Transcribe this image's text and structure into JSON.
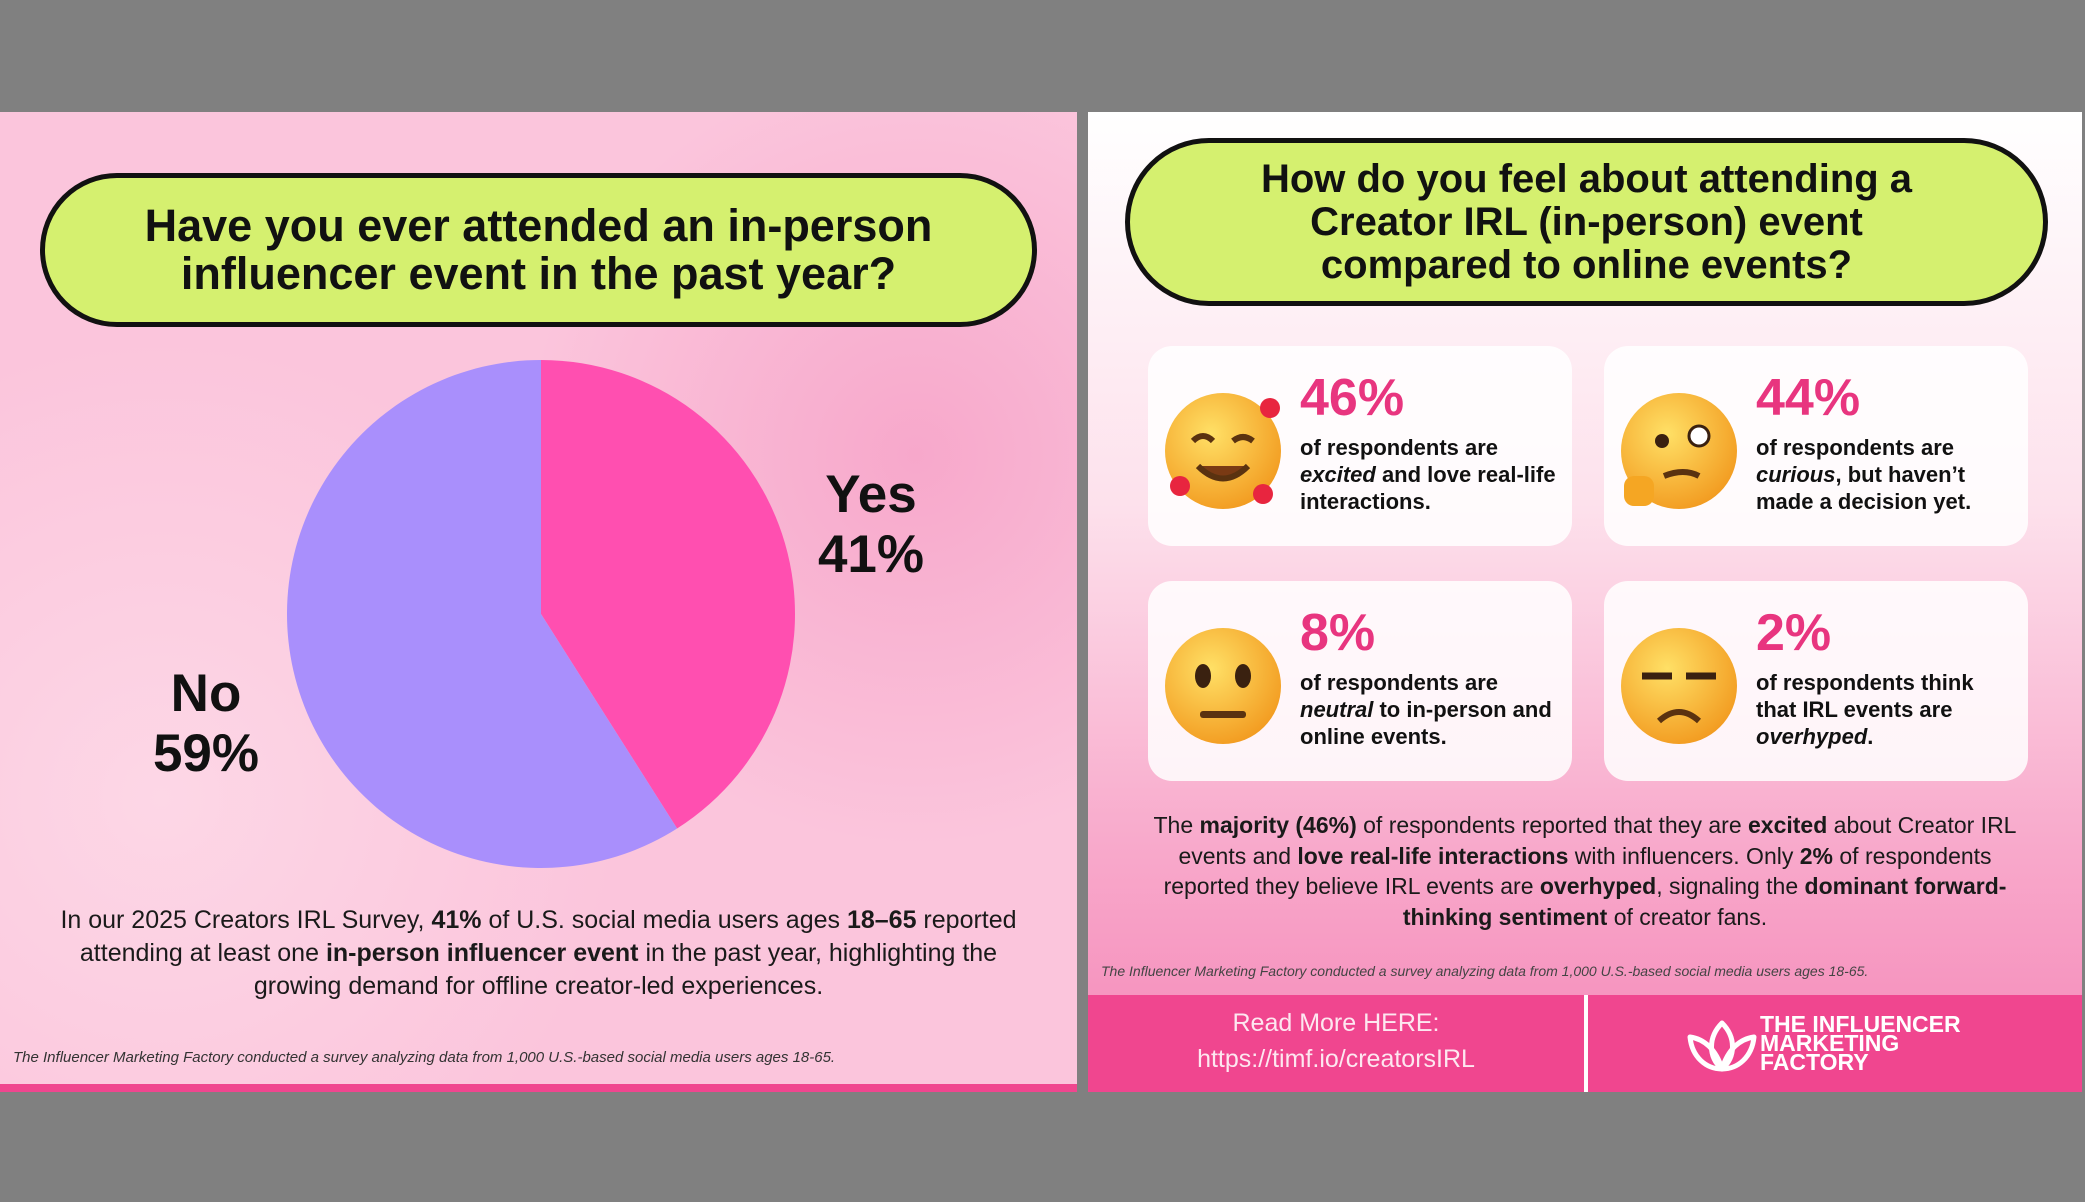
{
  "chart_data": {
    "type": "pie",
    "title": "Have you ever attended an in-person influencer event in the past year?",
    "categories": [
      "Yes",
      "No"
    ],
    "values": [
      41,
      59
    ],
    "value_labels": [
      "41%",
      "59%"
    ],
    "colors": [
      "#ff4fb0",
      "#a98ffc"
    ]
  },
  "left": {
    "summary": [
      "In our 2025 Creators IRL Survey, ",
      "41%",
      " of U.S. social media users ages ",
      "18–65",
      " reported attending at least one ",
      "in-person influencer event",
      " in the past year, highlighting the growing demand for offline creator-led experiences."
    ],
    "footnote": "The Influencer Marketing Factory conducted a survey analyzing data from 1,000 U.S.-based social media users ages 18-65."
  },
  "right": {
    "title": "How do you feel about attending a Creator IRL (in-person) event compared to online events?",
    "cards": [
      {
        "stat": "46%",
        "text": [
          "of respondents are ",
          "excited",
          " and love real-life interactions."
        ]
      },
      {
        "stat": "44%",
        "text": [
          "of respondents are ",
          "curious",
          ", but haven’t made a decision yet."
        ]
      },
      {
        "stat": "8%",
        "text": [
          "of respondents are ",
          "neutral",
          " to in-person and online events."
        ]
      },
      {
        "stat": "2%",
        "text": [
          "of respondents think that IRL events are ",
          "overhyped",
          "."
        ]
      }
    ],
    "summary": [
      "The ",
      "majority (46%)",
      " of respondents reported that they are ",
      "excited",
      " about Creator IRL events and ",
      "love real-life interactions",
      " with influencers. Only ",
      "2%",
      " of respondents reported they believe IRL events are ",
      "overhyped",
      ", signaling the ",
      "dominant forward-thinking sentiment",
      " of creator fans."
    ],
    "footnote": "The Influencer Marketing Factory conducted a survey analyzing data from 1,000 U.S.-based social media users ages 18-65.",
    "read_more": "Read More HERE:",
    "url": "https://timf.io/creatorsIRL",
    "logo": [
      "THE INFLUENCER",
      "MARKETING",
      "FACTORY"
    ]
  }
}
